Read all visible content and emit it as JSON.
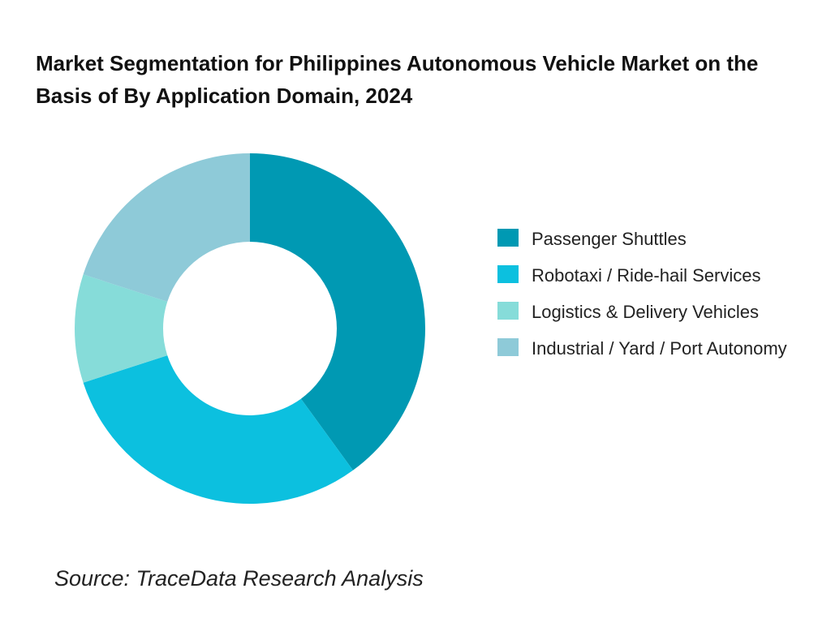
{
  "chart_data": {
    "type": "donut",
    "title": "Market Segmentation for Philippines Autonomous Vehicle Market on the Basis of  By Application Domain, 2024",
    "categories": [
      "Passenger Shuttles",
      "Robotaxi / Ride-hail Services",
      "Logistics & Delivery Vehicles",
      "Industrial / Yard / Port Autonomy"
    ],
    "values": [
      40,
      30,
      10,
      20
    ],
    "colors": [
      "#0099b3",
      "#0cc0df",
      "#86dcd9",
      "#8ecad8"
    ],
    "legend": "right",
    "source": "Source: TraceData Research Analysis"
  }
}
